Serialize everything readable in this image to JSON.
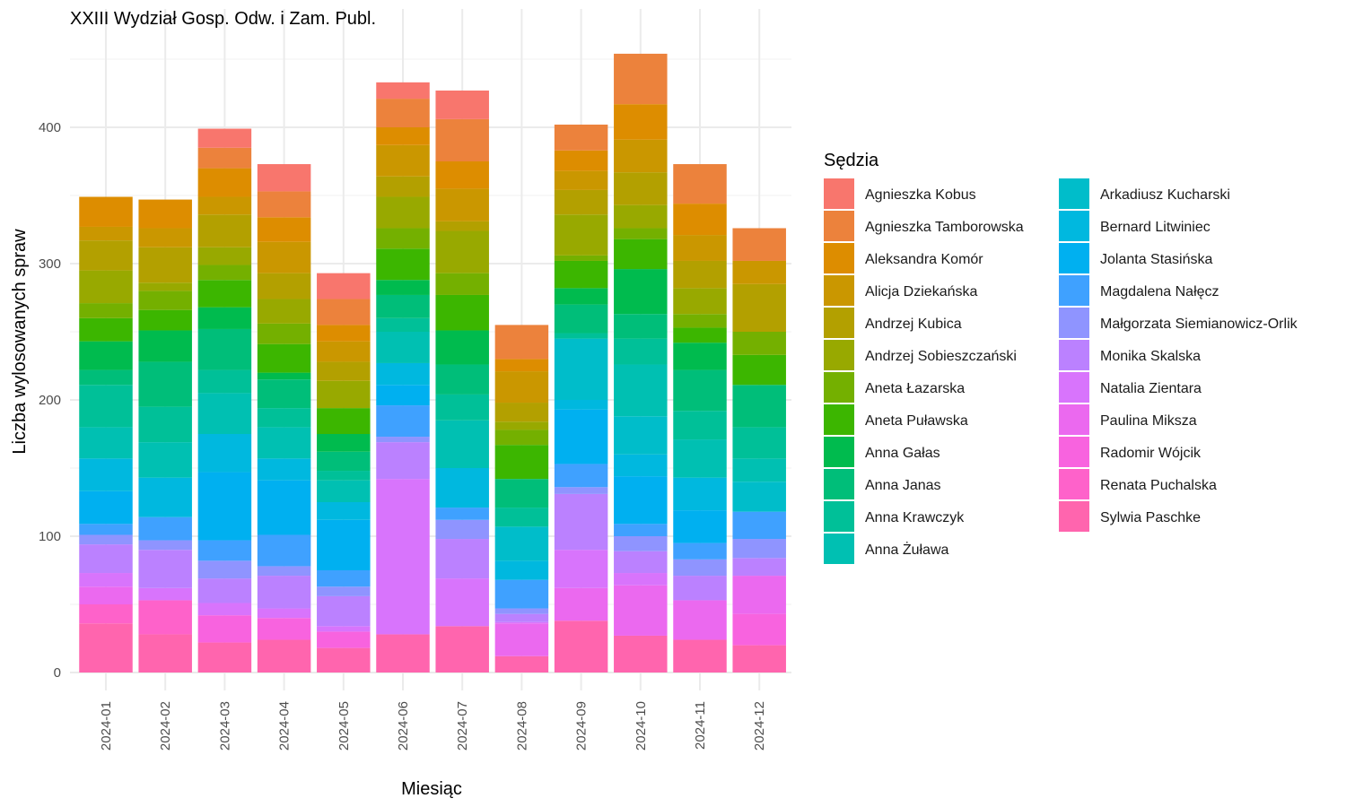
{
  "chart_data": {
    "type": "bar",
    "stacked": true,
    "title": "XXIII Wydział Gosp. Odw. i Zam. Publ.",
    "xlabel": "Miesiąc",
    "ylabel": "Liczba wylosowanych spraw",
    "ylim": [
      0,
      480
    ],
    "yticks": [
      0,
      100,
      200,
      300,
      400
    ],
    "grid": true,
    "legend_title": "Sędzia",
    "legend_position": "right",
    "categories": [
      "2024-01",
      "2024-02",
      "2024-03",
      "2024-04",
      "2024-05",
      "2024-06",
      "2024-07",
      "2024-08",
      "2024-09",
      "2024-10",
      "2024-11",
      "2024-12"
    ],
    "series": [
      {
        "name": "Agnieszka Kobus",
        "color": "#F8766D",
        "values": [
          0,
          0,
          14,
          20,
          19,
          12,
          21,
          0,
          0,
          0,
          0,
          0
        ]
      },
      {
        "name": "Agnieszka Tamborowska",
        "color": "#EC823C",
        "values": [
          0,
          0,
          15,
          19,
          19,
          21,
          31,
          25,
          19,
          37,
          29,
          24
        ]
      },
      {
        "name": "Aleksandra Komór",
        "color": "#DD8D00",
        "values": [
          22,
          21,
          21,
          18,
          12,
          13,
          20,
          9,
          15,
          26,
          23,
          0
        ]
      },
      {
        "name": "Alicja Dziekańska",
        "color": "#CA9700",
        "values": [
          10,
          14,
          13,
          23,
          15,
          23,
          24,
          23,
          14,
          24,
          19,
          17
        ]
      },
      {
        "name": "Andrzej Kubica",
        "color": "#B3A000",
        "values": [
          22,
          26,
          24,
          19,
          14,
          15,
          7,
          14,
          18,
          24,
          20,
          35
        ]
      },
      {
        "name": "Andrzej Sobieszczański",
        "color": "#98A900",
        "values": [
          24,
          6,
          13,
          18,
          20,
          23,
          31,
          6,
          30,
          17,
          19,
          0
        ]
      },
      {
        "name": "Aneta Łazarska",
        "color": "#74B000",
        "values": [
          11,
          14,
          11,
          15,
          0,
          15,
          16,
          11,
          4,
          8,
          10,
          17
        ]
      },
      {
        "name": "Aneta Puławska",
        "color": "#3CB600",
        "values": [
          17,
          15,
          20,
          21,
          19,
          23,
          26,
          25,
          20,
          22,
          11,
          22
        ]
      },
      {
        "name": "Anna Gałas",
        "color": "#00BB4E",
        "values": [
          21,
          23,
          16,
          5,
          13,
          11,
          25,
          0,
          12,
          33,
          20,
          0
        ]
      },
      {
        "name": "Anna Janas",
        "color": "#00BE79",
        "values": [
          11,
          33,
          30,
          21,
          14,
          17,
          22,
          21,
          21,
          18,
          30,
          31
        ]
      },
      {
        "name": "Anna Krawczyk",
        "color": "#00C098",
        "values": [
          31,
          26,
          17,
          14,
          7,
          10,
          19,
          14,
          4,
          19,
          21,
          23
        ]
      },
      {
        "name": "Anna Żuława",
        "color": "#00C0B2",
        "values": [
          23,
          26,
          30,
          23,
          16,
          23,
          35,
          0,
          0,
          38,
          28,
          17
        ]
      },
      {
        "name": "Arkadiusz Kucharski",
        "color": "#00BDCA",
        "values": [
          0,
          0,
          0,
          0,
          0,
          0,
          0,
          25,
          45,
          28,
          0,
          22
        ]
      },
      {
        "name": "Bernard Litwiniec",
        "color": "#00B8DF",
        "values": [
          24,
          29,
          28,
          16,
          13,
          16,
          29,
          14,
          7,
          16,
          24,
          0
        ]
      },
      {
        "name": "Jolanta Stasińska",
        "color": "#00B0F0",
        "values": [
          24,
          0,
          50,
          40,
          37,
          15,
          0,
          0,
          40,
          35,
          24,
          0
        ]
      },
      {
        "name": "Magdalena Nałęcz",
        "color": "#3FA1FF",
        "values": [
          8,
          17,
          15,
          23,
          12,
          23,
          9,
          21,
          17,
          9,
          12,
          20
        ]
      },
      {
        "name": "Małgorzata Siemianowicz-Orlik",
        "color": "#8F94FF",
        "values": [
          7,
          7,
          13,
          7,
          7,
          4,
          14,
          4,
          5,
          11,
          12,
          14
        ]
      },
      {
        "name": "Monika Skalska",
        "color": "#BB81FF",
        "values": [
          21,
          28,
          18,
          24,
          22,
          27,
          29,
          6,
          41,
          16,
          18,
          13
        ]
      },
      {
        "name": "Natalia Zientara",
        "color": "#D874FC",
        "values": [
          10,
          9,
          9,
          7,
          4,
          114,
          35,
          1,
          28,
          9,
          0,
          0
        ]
      },
      {
        "name": "Paulina Miksza",
        "color": "#EB69EF",
        "values": [
          13,
          0,
          0,
          0,
          0,
          0,
          0,
          24,
          24,
          37,
          29,
          28
        ]
      },
      {
        "name": "Radomir Wójcik",
        "color": "#F863DF",
        "values": [
          0,
          0,
          20,
          16,
          12,
          0,
          0,
          0,
          0,
          0,
          0,
          23
        ]
      },
      {
        "name": "Renata Puchalska",
        "color": "#FE62CA",
        "values": [
          14,
          25,
          0,
          0,
          0,
          0,
          0,
          0,
          0,
          0,
          0,
          0
        ]
      },
      {
        "name": "Sylwia Paschke",
        "color": "#FF65AE",
        "values": [
          36,
          28,
          22,
          24,
          18,
          28,
          34,
          12,
          38,
          27,
          24,
          20
        ]
      }
    ]
  }
}
